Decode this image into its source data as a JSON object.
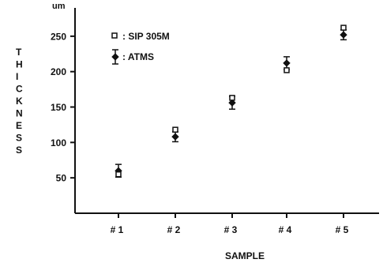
{
  "chart_data": {
    "type": "scatter",
    "unit_label": "um",
    "ylabel": "THICKNESS",
    "xlabel": "SAMPLE",
    "categories": [
      "# 1",
      "# 2",
      "# 3",
      "# 4",
      "# 5"
    ],
    "ylim": [
      0,
      290
    ],
    "yticks": [
      50,
      100,
      150,
      200,
      250
    ],
    "grid": false,
    "legend_position": "top-left",
    "series": [
      {
        "name": ": SIP 305M",
        "marker": "open-square",
        "values": [
          55,
          118,
          163,
          202,
          262
        ]
      },
      {
        "name": ": ATMS",
        "marker": "filled-diamond",
        "values": [
          60,
          108,
          156,
          212,
          252
        ],
        "error": [
          9,
          7,
          9,
          9,
          7
        ]
      }
    ]
  }
}
